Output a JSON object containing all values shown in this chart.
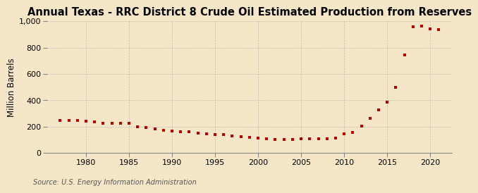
{
  "title": "Annual Texas - RRC District 8 Crude Oil Estimated Production from Reserves",
  "ylabel": "Million Barrels",
  "source": "Source: U.S. Energy Information Administration",
  "background_color": "#f5e6c8",
  "plot_bg_color": "#f5e6c8",
  "marker_color": "#bb0000",
  "years": [
    1977,
    1978,
    1979,
    1980,
    1981,
    1982,
    1983,
    1984,
    1985,
    1986,
    1987,
    1988,
    1989,
    1990,
    1991,
    1992,
    1993,
    1994,
    1995,
    1996,
    1997,
    1998,
    1999,
    2000,
    2001,
    2002,
    2003,
    2004,
    2005,
    2006,
    2007,
    2008,
    2009,
    2010,
    2011,
    2012,
    2013,
    2014,
    2015,
    2016,
    2017,
    2018,
    2019,
    2020,
    2021
  ],
  "values": [
    245,
    248,
    250,
    242,
    235,
    228,
    228,
    228,
    225,
    200,
    195,
    183,
    175,
    168,
    162,
    160,
    152,
    148,
    143,
    138,
    130,
    122,
    117,
    113,
    108,
    105,
    103,
    105,
    107,
    107,
    108,
    110,
    113,
    148,
    155,
    205,
    265,
    330,
    388,
    500,
    745,
    960,
    965,
    940,
    935
  ],
  "xlim": [
    1975.5,
    2022.5
  ],
  "ylim": [
    0,
    1000
  ],
  "yticks": [
    0,
    200,
    400,
    600,
    800,
    1000
  ],
  "xticks": [
    1980,
    1985,
    1990,
    1995,
    2000,
    2005,
    2010,
    2015,
    2020
  ],
  "grid_color": "#aaaaaa",
  "title_fontsize": 10.5,
  "label_fontsize": 8.5,
  "tick_fontsize": 8,
  "source_fontsize": 7
}
